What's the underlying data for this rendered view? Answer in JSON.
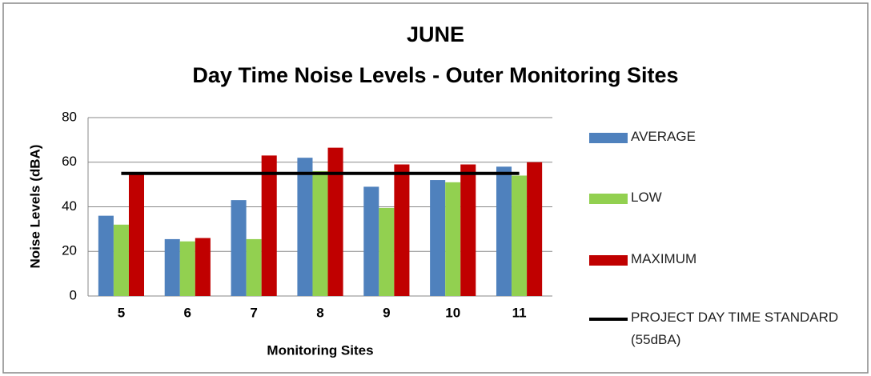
{
  "chart_data": {
    "type": "bar",
    "title": "JUNE",
    "subtitle": "Day Time Noise Levels - Outer Monitoring Sites",
    "x_label": "Monitoring Sites",
    "y_label": "Noise Levels (dBA)",
    "categories": [
      "5",
      "6",
      "7",
      "8",
      "9",
      "10",
      "11"
    ],
    "series": [
      {
        "name": "AVERAGE",
        "color": "#4f81bd",
        "type": "bar",
        "values": [
          36,
          25.5,
          43,
          62,
          49,
          52,
          58
        ]
      },
      {
        "name": "LOW",
        "color": "#92d050",
        "type": "bar",
        "values": [
          32,
          24.5,
          25.5,
          56,
          39.5,
          51,
          54
        ]
      },
      {
        "name": "MAXIMUM",
        "color": "#c00000",
        "type": "bar",
        "values": [
          55,
          26,
          63,
          66.5,
          59,
          59,
          60
        ]
      },
      {
        "name": "PROJECT DAY TIME STANDARD (55dBA)",
        "color": "#000000",
        "type": "line",
        "values": [
          55,
          55,
          55,
          55,
          55,
          55,
          55
        ]
      }
    ],
    "ylim": [
      0,
      80
    ],
    "yticks": [
      0,
      20,
      40,
      60,
      80
    ],
    "grid": true,
    "legend": "right"
  }
}
